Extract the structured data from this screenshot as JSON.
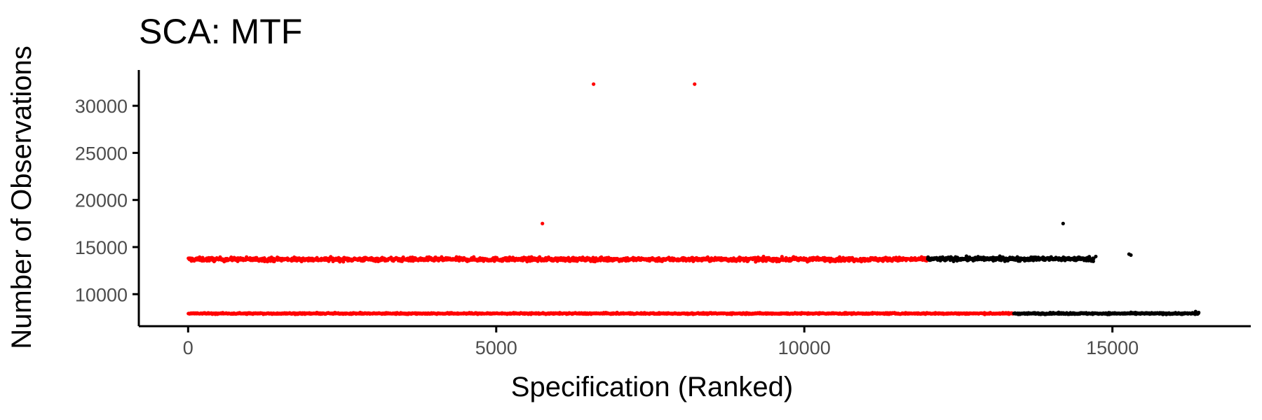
{
  "chart_data": {
    "type": "scatter",
    "title": "SCA: MTF",
    "xlabel": "Specification (Ranked)",
    "ylabel": "Number of Observations",
    "xlim": [
      -800,
      17200
    ],
    "ylim": [
      6600,
      33800
    ],
    "x_ticks": [
      0,
      5000,
      10000,
      15000
    ],
    "y_ticks": [
      10000,
      15000,
      20000,
      25000,
      30000
    ],
    "grid": false,
    "legend": "none",
    "colors": {
      "significant": "#ff0000",
      "not_significant": "#000000",
      "axis": "#000000",
      "tick_label": "#4d4d4d"
    },
    "bands": [
      {
        "group": "significant",
        "x_range": [
          0,
          12000
        ],
        "y_center": 13700,
        "y_spread": 350,
        "points": 1500
      },
      {
        "group": "not_significant",
        "x_range": [
          12000,
          14700
        ],
        "y_center": 13750,
        "y_spread": 350,
        "points": 340
      },
      {
        "group": "significant",
        "x_range": [
          0,
          13400
        ],
        "y_center": 7950,
        "y_spread": 120,
        "points": 1500
      },
      {
        "group": "not_significant",
        "x_range": [
          13400,
          16400
        ],
        "y_center": 7950,
        "y_spread": 140,
        "points": 380
      }
    ],
    "points": [
      {
        "x": 6580,
        "y": 32300,
        "group": "significant"
      },
      {
        "x": 8220,
        "y": 32300,
        "group": "significant"
      },
      {
        "x": 5750,
        "y": 17500,
        "group": "significant"
      },
      {
        "x": 14200,
        "y": 17500,
        "group": "not_significant"
      },
      {
        "x": 14730,
        "y": 14000,
        "group": "not_significant"
      },
      {
        "x": 15270,
        "y": 14250,
        "group": "not_significant"
      },
      {
        "x": 15300,
        "y": 14150,
        "group": "not_significant"
      },
      {
        "x": 16350,
        "y": 8150,
        "group": "not_significant"
      },
      {
        "x": 16400,
        "y": 8050,
        "group": "not_significant"
      }
    ]
  }
}
